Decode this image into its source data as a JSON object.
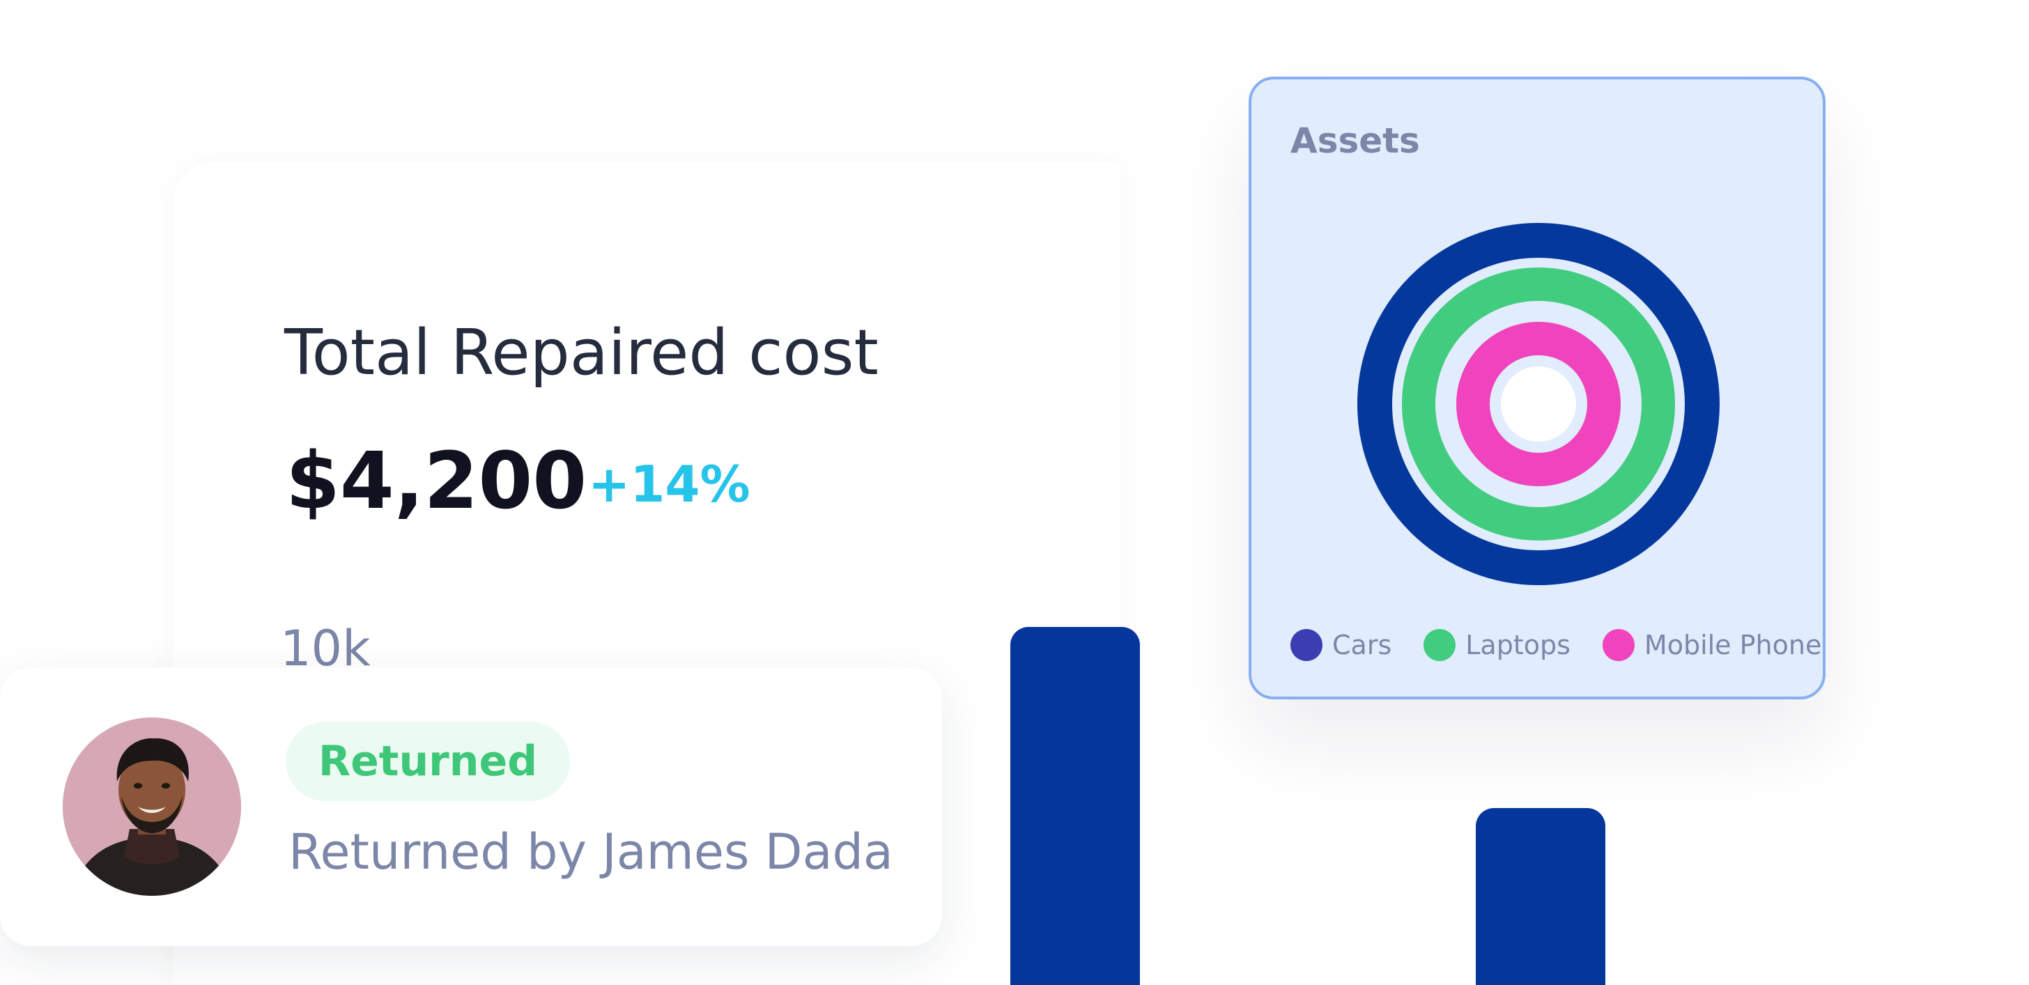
{
  "cost_card": {
    "title": "Total Repaired cost",
    "value": "$4,200",
    "change": "+14%",
    "axis_label": "10k"
  },
  "assets": {
    "title": "Assets",
    "legend": [
      {
        "label": "Cars",
        "color": "#3b3db2"
      },
      {
        "label": "Laptops",
        "color": "#41cc7f"
      },
      {
        "label": "Mobile Phone",
        "color": "#ef44bd"
      }
    ],
    "ring_colors": [
      "#04389c",
      "#41cc7f",
      "#ef44bd"
    ]
  },
  "returned": {
    "status": "Returned",
    "by": "Returned by James Dada",
    "avatar_icon": "person-avatar"
  },
  "colors": {
    "bar": "#04369c",
    "accent_change": "#25c4e8",
    "status_green": "#3ec779"
  }
}
